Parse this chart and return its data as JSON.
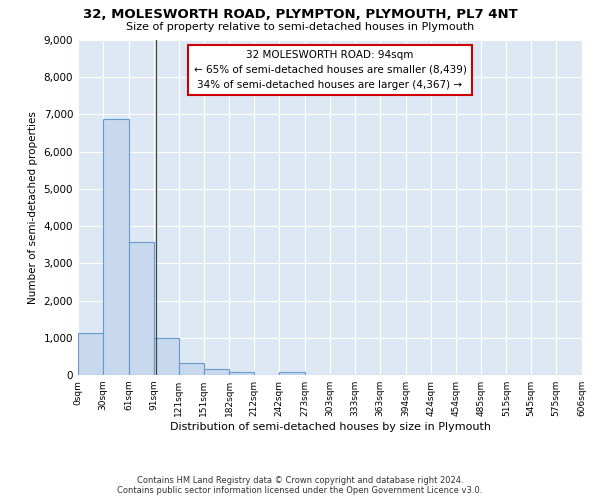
{
  "title": "32, MOLESWORTH ROAD, PLYMPTON, PLYMOUTH, PL7 4NT",
  "subtitle": "Size of property relative to semi-detached houses in Plymouth",
  "xlabel": "Distribution of semi-detached houses by size in Plymouth",
  "ylabel": "Number of semi-detached properties",
  "bar_values": [
    1120,
    6870,
    3560,
    1000,
    330,
    150,
    90,
    0,
    90,
    0,
    0,
    0,
    0,
    0,
    0,
    0,
    0,
    0,
    0,
    0
  ],
  "bin_edges": [
    0,
    30,
    61,
    91,
    121,
    151,
    182,
    212,
    242,
    273,
    303,
    333,
    363,
    394,
    424,
    454,
    485,
    515,
    545,
    575,
    606
  ],
  "x_tick_labels": [
    "0sqm",
    "30sqm",
    "61sqm",
    "91sqm",
    "121sqm",
    "151sqm",
    "182sqm",
    "212sqm",
    "242sqm",
    "273sqm",
    "303sqm",
    "333sqm",
    "363sqm",
    "394sqm",
    "424sqm",
    "454sqm",
    "485sqm",
    "515sqm",
    "545sqm",
    "575sqm",
    "606sqm"
  ],
  "bar_color": "#c8d8ed",
  "bar_edge_color": "#6699cc",
  "background_color": "#dde8f4",
  "grid_color": "#ffffff",
  "ylim": [
    0,
    9000
  ],
  "yticks": [
    0,
    1000,
    2000,
    3000,
    4000,
    5000,
    6000,
    7000,
    8000,
    9000
  ],
  "property_line_x": 94,
  "annotation_line1": "32 MOLESWORTH ROAD: 94sqm",
  "annotation_line2": "← 65% of semi-detached houses are smaller (8,439)",
  "annotation_line3": "34% of semi-detached houses are larger (4,367) →",
  "annotation_box_color": "#cc0000",
  "footer_line1": "Contains HM Land Registry data © Crown copyright and database right 2024.",
  "footer_line2": "Contains public sector information licensed under the Open Government Licence v3.0."
}
